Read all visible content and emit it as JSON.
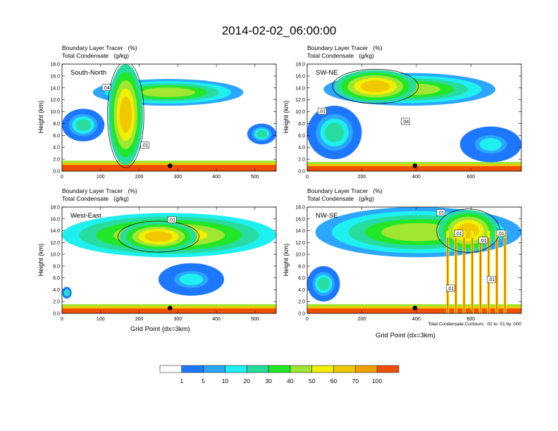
{
  "title": "2014-02-02_06:00:00",
  "colors": {
    "levels": [
      "#ffffff",
      "#1e78ff",
      "#2ca6ff",
      "#1ef0f0",
      "#28dca0",
      "#22e628",
      "#a0e632",
      "#f0f000",
      "#f0c800",
      "#f0a000",
      "#f05000",
      "#f01e1e"
    ],
    "contour": "#000000"
  },
  "colorbar": {
    "labels": [
      "1",
      "5",
      "10",
      "20",
      "30",
      "40",
      "50",
      "60",
      "70",
      "100"
    ]
  },
  "panels": [
    {
      "name": "South-North",
      "line1": "Boundary Layer Tracer   (%)",
      "line2": "Total Condensate   (g/kg)",
      "ylabel": "Height (km)",
      "xlabel": "",
      "yticks": [
        "0.0",
        "2.0",
        "4.0",
        "6.0",
        "8.0",
        "10.0",
        "12.0",
        "14.0",
        "16.0",
        "18.0"
      ],
      "xticks": [
        "0",
        "100",
        "200",
        "300",
        "400",
        "500"
      ],
      "xmax": 555,
      "marker_x": 280,
      "contour_labels": [
        {
          "text": ".04",
          "x": 115,
          "y": 14.0
        },
        {
          "text": ".01",
          "x": 215,
          "y": 4.3
        }
      ]
    },
    {
      "name": "SW-NE",
      "line1": "Boundary Layer Tracer   (%)",
      "line2": "Total Condensate   (g/kg)",
      "ylabel": "Height (km)",
      "xlabel": "",
      "yticks": [
        "0.0",
        "2.0",
        "4.0",
        "6.0",
        "8.0",
        "10.0",
        "12.0",
        "14.0",
        "16.0",
        "18.0"
      ],
      "xticks": [
        "0",
        "200",
        "400",
        "600"
      ],
      "xmax": 785,
      "marker_x": 395,
      "contour_labels": [
        {
          "text": ".01",
          "x": 55,
          "y": 10.0
        },
        {
          "text": ".04",
          "x": 360,
          "y": 8.3
        }
      ]
    },
    {
      "name": "West-East",
      "line1": "Boundary Layer Tracer   (%)",
      "line2": "Total Condensate   (g/kg)",
      "ylabel": "Height (km)",
      "xlabel": "Grid Point (dx=3km)",
      "yticks": [
        "0.0",
        "2.0",
        "4.0",
        "6.0",
        "8.0",
        "10.0",
        "12.0",
        "14.0",
        "16.0",
        "18.0"
      ],
      "xticks": [
        "0",
        "100",
        "200",
        "300",
        "400",
        "500"
      ],
      "xmax": 555,
      "marker_x": 280,
      "contour_labels": [
        {
          "text": ".01",
          "x": 285,
          "y": 15.8
        }
      ]
    },
    {
      "name": "NW-SE",
      "line1": "Boundary Layer Tracer   (%)",
      "line2": "Total Condensate   (g/kg)",
      "ylabel": "Height (km)",
      "xlabel": "Grid Point (dx=3km)",
      "yticks": [
        "0.0",
        "2.0",
        "4.0",
        "6.0",
        "8.0",
        "10.0",
        "12.0",
        "14.0",
        "16.0",
        "18.0"
      ],
      "xticks": [
        "0",
        "200",
        "400",
        "600"
      ],
      "xmax": 785,
      "marker_x": 395,
      "contour_labels": [
        {
          "text": ".01",
          "x": 490,
          "y": 17.0
        },
        {
          "text": ".01",
          "x": 555,
          "y": 13.5
        },
        {
          "text": ".01",
          "x": 645,
          "y": 12.3
        },
        {
          "text": ".01",
          "x": 710,
          "y": 13.5
        },
        {
          "text": ".01",
          "x": 525,
          "y": 4.2
        },
        {
          "text": ".01",
          "x": 675,
          "y": 5.7
        }
      ],
      "note": "Total Condensate Contours: .01 to .01 by .000"
    }
  ],
  "chart_data": {
    "type": "heatmap",
    "title": "2014-02-02_06:00:00",
    "fill_variable": "Boundary Layer Tracer (%)",
    "contour_variable": "Total Condensate (g/kg)",
    "fill_levels": [
      1,
      5,
      10,
      20,
      30,
      40,
      50,
      60,
      70,
      100
    ],
    "contour_levels": [
      0.01
    ],
    "ylabel": "Height (km)",
    "ylim": [
      0,
      18
    ],
    "xlabel": "Grid Point (dx=3km)",
    "panels": [
      {
        "name": "South-North",
        "xlim": [
          0,
          555
        ],
        "features": [
          {
            "kind": "surface_layer",
            "x": [
              0,
              555
            ],
            "y": [
              0,
              1.4
            ],
            "value": 70
          },
          {
            "kind": "anvil",
            "x": [
              80,
              470
            ],
            "y": [
              11.0,
              15.5
            ],
            "value": 40
          },
          {
            "kind": "core",
            "x": [
              120,
              210
            ],
            "y": [
              1.0,
              18.0
            ],
            "value": 60
          },
          {
            "kind": "patch",
            "x": [
              0,
              110
            ],
            "y": [
              5.0,
              10.5
            ],
            "value": 20
          },
          {
            "kind": "patch",
            "x": [
              480,
              555
            ],
            "y": [
              4.5,
              8.0
            ],
            "value": 20
          }
        ]
      },
      {
        "name": "SW-NE",
        "xlim": [
          0,
          785
        ],
        "features": [
          {
            "kind": "surface_layer",
            "x": [
              0,
              785
            ],
            "y": [
              0,
              1.2
            ],
            "value": 70
          },
          {
            "kind": "anvil",
            "x": [
              60,
              690
            ],
            "y": [
              11.0,
              16.5
            ],
            "value": 40
          },
          {
            "kind": "core",
            "x": [
              100,
              400
            ],
            "y": [
              11.5,
              17.0
            ],
            "value": 60
          },
          {
            "kind": "patch",
            "x": [
              0,
              200
            ],
            "y": [
              2.0,
              11.0
            ],
            "value": 20
          },
          {
            "kind": "patch",
            "x": [
              560,
              785
            ],
            "y": [
              1.5,
              7.5
            ],
            "value": 10
          }
        ]
      },
      {
        "name": "West-East",
        "xlim": [
          0,
          555
        ],
        "features": [
          {
            "kind": "surface_layer",
            "x": [
              0,
              555
            ],
            "y": [
              0,
              1.2
            ],
            "value": 70
          },
          {
            "kind": "anvil",
            "x": [
              0,
              555
            ],
            "y": [
              9.5,
              17.0
            ],
            "value": 50
          },
          {
            "kind": "core",
            "x": [
              150,
              350
            ],
            "y": [
              10.5,
              15.5
            ],
            "value": 60
          },
          {
            "kind": "patch",
            "x": [
              0,
              25
            ],
            "y": [
              2.5,
              4.5
            ],
            "value": 20
          },
          {
            "kind": "patch",
            "x": [
              250,
              420
            ],
            "y": [
              3.0,
              8.5
            ],
            "value": 10
          }
        ]
      },
      {
        "name": "NW-SE",
        "xlim": [
          0,
          785
        ],
        "features": [
          {
            "kind": "surface_layer",
            "x": [
              0,
              785
            ],
            "y": [
              0,
              1.2
            ],
            "value": 70
          },
          {
            "kind": "anvil",
            "x": [
              30,
              785
            ],
            "y": [
              9.5,
              18.0
            ],
            "value": 40
          },
          {
            "kind": "core",
            "x": [
              480,
              700
            ],
            "y": [
              10.5,
              17.5
            ],
            "value": 60
          },
          {
            "kind": "patch",
            "x": [
              0,
              120
            ],
            "y": [
              2.0,
              8.0
            ],
            "value": 20
          },
          {
            "kind": "plumes",
            "x": [
              500,
              740
            ],
            "y": [
              0,
              14.0
            ],
            "value": 70
          }
        ]
      }
    ]
  }
}
